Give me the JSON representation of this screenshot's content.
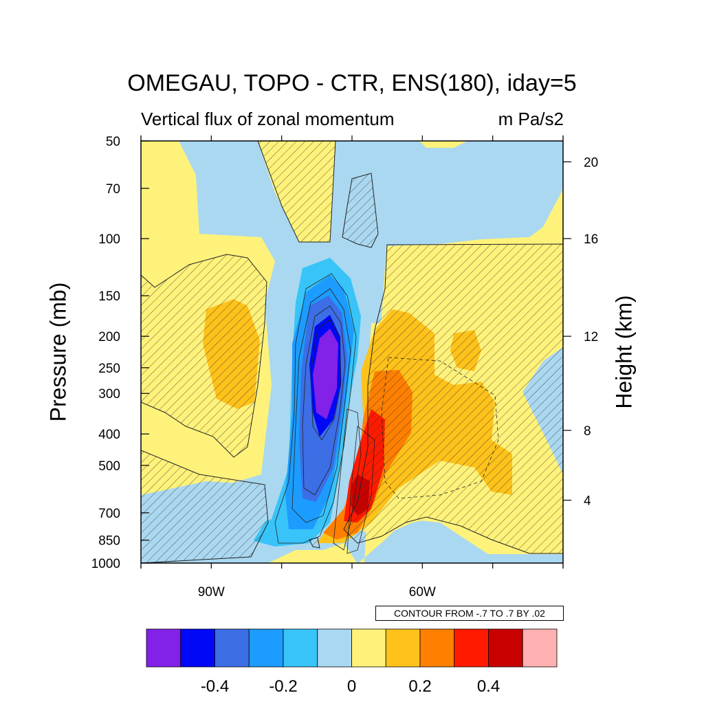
{
  "chart_data": {
    "type": "heatmap",
    "title": "OMEGAU, TOPO - CTR, ENS(180), iday=5",
    "subtitle_left": "Vertical flux of zonal momentum",
    "subtitle_right": "m Pa/s2",
    "ylabel": "Pressure (mb)",
    "ylabel_right": "Height (km)",
    "y_scale": "log",
    "ylim": [
      1000,
      50
    ],
    "y_ticks": [
      50,
      70,
      100,
      150,
      200,
      250,
      300,
      400,
      500,
      700,
      850,
      1000
    ],
    "y_tick_labels": [
      "50",
      "70",
      "100",
      "150",
      "200",
      "250",
      "300",
      "400",
      "500",
      "700",
      "850",
      "1000"
    ],
    "right_ticks": [
      {
        "label": "20",
        "pressure": 58
      },
      {
        "label": "16",
        "pressure": 100
      },
      {
        "label": "12",
        "pressure": 200
      },
      {
        "label": "8",
        "pressure": 390
      },
      {
        "label": "4",
        "pressure": 640
      }
    ],
    "x_label_ticks": [
      {
        "label": "90W",
        "lon": -90
      },
      {
        "label": "60W",
        "lon": -60
      }
    ],
    "x_minor_ticks": [
      -100,
      -80,
      -70,
      -50,
      -40
    ],
    "xlim": [
      -100,
      -40
    ],
    "contour_info": "CONTOUR FROM -.7 TO .7 BY .02",
    "colorbar": {
      "colors": [
        "#8221e8",
        "#0008f5",
        "#3c6ee6",
        "#1c9cff",
        "#38c4f8",
        "#aad8f0",
        "#fff27a",
        "#ffc21a",
        "#ff8000",
        "#ff1a00",
        "#c80000",
        "#ffb0b0"
      ],
      "tick_labels": [
        "-0.4",
        "-0.2",
        "0",
        "0.2",
        "0.4"
      ],
      "tick_values": [
        -0.4,
        -0.2,
        0,
        0.2,
        0.4
      ],
      "min": -0.6,
      "max": 0.6
    },
    "features": [
      {
        "name": "negative-core",
        "lon": -74,
        "pressure": 300,
        "value": -0.5
      },
      {
        "name": "positive-core",
        "lon": -65,
        "pressure": 600,
        "value": 0.45
      },
      {
        "name": "west-positive",
        "lon": -90,
        "pressure": 220,
        "value": 0.15
      },
      {
        "name": "east-positive",
        "lon": -58,
        "pressure": 380,
        "value": 0.2
      }
    ],
    "grid": false,
    "legend_placement": "bottom"
  }
}
